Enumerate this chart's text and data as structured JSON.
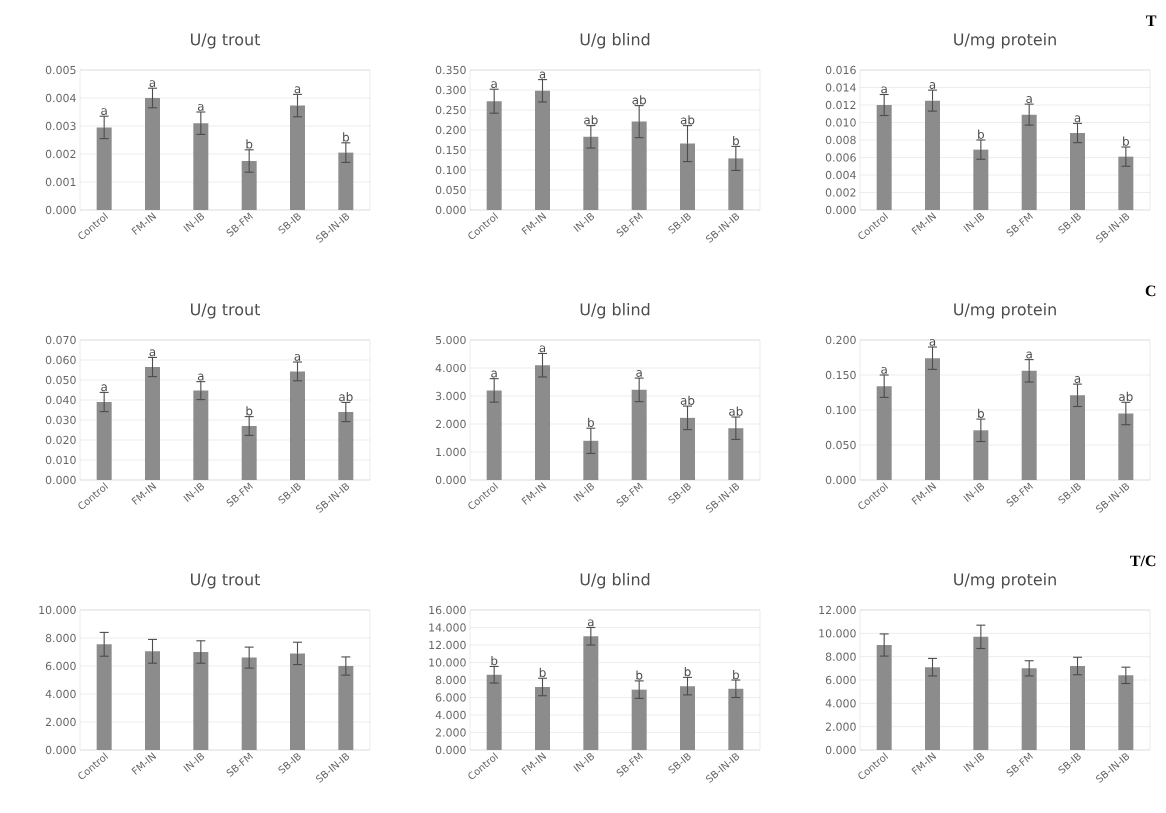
{
  "chart_data": [
    {
      "type": "bar",
      "title": "U/g trout",
      "categories": [
        "Control",
        "FM-IN",
        "IN-IB",
        "SB-FM",
        "SB-IB",
        "SB-IN-IB"
      ],
      "values": [
        0.00295,
        0.004,
        0.0031,
        0.00175,
        0.00373,
        0.00205
      ],
      "errors": [
        0.0004,
        0.00035,
        0.0004,
        0.0004,
        0.0004,
        0.00035
      ],
      "color": "#8c8c8c",
      "ylim": [
        0,
        0.005
      ],
      "yticks": [
        {
          "value": 0,
          "label": "0.000"
        },
        {
          "value": 0.001,
          "label": "0.001"
        },
        {
          "value": 0.002,
          "label": "0.002"
        },
        {
          "value": 0.003,
          "label": "0.003"
        },
        {
          "value": 0.004,
          "label": "0.004"
        },
        {
          "value": 0.005,
          "label": "0.005"
        }
      ],
      "grid": "y",
      "annotations": [
        {
          "text": "a",
          "x": "Control",
          "y": 0.00335
        },
        {
          "text": "a",
          "x": "FM-IN",
          "y": 0.00435
        },
        {
          "text": "a",
          "x": "IN-IB",
          "y": 0.0035
        },
        {
          "text": "b",
          "x": "SB-FM",
          "y": 0.00215
        },
        {
          "text": "a",
          "x": "SB-IB",
          "y": 0.00413
        },
        {
          "text": "b",
          "x": "SB-IN-IB",
          "y": 0.0024
        }
      ]
    },
    {
      "type": "bar",
      "title": "U/g blind",
      "categories": [
        "Control",
        "FM-IN",
        "IN-IB",
        "SB-FM",
        "SB-IB",
        "SB-IN-IB"
      ],
      "values": [
        0.272,
        0.298,
        0.183,
        0.221,
        0.166,
        0.129
      ],
      "errors": [
        0.03,
        0.028,
        0.028,
        0.04,
        0.045,
        0.03
      ],
      "color": "#8c8c8c",
      "ylim": [
        0,
        0.35
      ],
      "yticks": [
        {
          "value": 0,
          "label": "0.000"
        },
        {
          "value": 0.05,
          "label": "0.050"
        },
        {
          "value": 0.1,
          "label": "0.100"
        },
        {
          "value": 0.15,
          "label": "0.150"
        },
        {
          "value": 0.2,
          "label": "0.200"
        },
        {
          "value": 0.25,
          "label": "0.250"
        },
        {
          "value": 0.3,
          "label": "0.300"
        },
        {
          "value": 0.35,
          "label": "0.350"
        }
      ],
      "grid": "y",
      "annotations": [
        {
          "text": "a",
          "x": "Control",
          "y": 0.302
        },
        {
          "text": "a",
          "x": "FM-IN",
          "y": 0.326
        },
        {
          "text": "ab",
          "x": "IN-IB",
          "y": 0.211
        },
        {
          "text": "ab",
          "x": "SB-FM",
          "y": 0.261
        },
        {
          "text": "ab",
          "x": "SB-IB",
          "y": 0.211
        },
        {
          "text": "b",
          "x": "SB-IN-IB",
          "y": 0.159
        }
      ]
    },
    {
      "type": "bar",
      "title": "U/mg protein",
      "categories": [
        "Control",
        "FM-IN",
        "IN-IB",
        "SB-FM",
        "SB-IB",
        "SB-IN-IB"
      ],
      "values": [
        0.012,
        0.0125,
        0.0069,
        0.0109,
        0.0088,
        0.0061
      ],
      "errors": [
        0.0012,
        0.0012,
        0.0011,
        0.0012,
        0.0011,
        0.0011
      ],
      "color": "#8c8c8c",
      "ylim": [
        0,
        0.016
      ],
      "yticks": [
        {
          "value": 0,
          "label": "0.000"
        },
        {
          "value": 0.002,
          "label": "0.002"
        },
        {
          "value": 0.004,
          "label": "0.004"
        },
        {
          "value": 0.006,
          "label": "0.006"
        },
        {
          "value": 0.008,
          "label": "0.008"
        },
        {
          "value": 0.01,
          "label": "0.010"
        },
        {
          "value": 0.012,
          "label": "0.012"
        },
        {
          "value": 0.014,
          "label": "0.014"
        },
        {
          "value": 0.016,
          "label": "0.016"
        }
      ],
      "grid": "y",
      "annotations": [
        {
          "text": "a",
          "x": "Control",
          "y": 0.0132
        },
        {
          "text": "a",
          "x": "FM-IN",
          "y": 0.0137
        },
        {
          "text": "b",
          "x": "IN-IB",
          "y": 0.008
        },
        {
          "text": "a",
          "x": "SB-FM",
          "y": 0.0121
        },
        {
          "text": "a",
          "x": "SB-IB",
          "y": 0.0099
        },
        {
          "text": "b",
          "x": "SB-IN-IB",
          "y": 0.0072
        },
        "T"
      ]
    },
    {
      "type": "bar",
      "title": "U/g trout",
      "categories": [
        "Control",
        "FM-IN",
        "IN-IB",
        "SB-FM",
        "SB-IB",
        "SB-IN-IB"
      ],
      "values": [
        0.039,
        0.0565,
        0.0447,
        0.027,
        0.0543,
        0.034
      ],
      "errors": [
        0.0048,
        0.0048,
        0.0045,
        0.0047,
        0.0047,
        0.0048
      ],
      "color": "#8c8c8c",
      "ylim": [
        0,
        0.07
      ],
      "yticks": [
        {
          "value": 0,
          "label": "0.000"
        },
        {
          "value": 0.01,
          "label": "0.010"
        },
        {
          "value": 0.02,
          "label": "0.020"
        },
        {
          "value": 0.03,
          "label": "0.030"
        },
        {
          "value": 0.04,
          "label": "0.040"
        },
        {
          "value": 0.05,
          "label": "0.050"
        },
        {
          "value": 0.06,
          "label": "0.060"
        },
        {
          "value": 0.07,
          "label": "0.070"
        }
      ],
      "grid": "y",
      "annotations": [
        {
          "text": "a",
          "x": "Control",
          "y": 0.0438
        },
        {
          "text": "a",
          "x": "FM-IN",
          "y": 0.0613
        },
        {
          "text": "a",
          "x": "IN-IB",
          "y": 0.0492
        },
        {
          "text": "b",
          "x": "SB-FM",
          "y": 0.0317
        },
        {
          "text": "a",
          "x": "SB-IB",
          "y": 0.059
        },
        {
          "text": "ab",
          "x": "SB-IN-IB",
          "y": 0.0388
        }
      ]
    },
    {
      "type": "bar",
      "title": "U/g blind",
      "categories": [
        "Control",
        "FM-IN",
        "IN-IB",
        "SB-FM",
        "SB-IB",
        "SB-IN-IB"
      ],
      "values": [
        3.2,
        4.1,
        1.4,
        3.22,
        2.22,
        1.85
      ],
      "errors": [
        0.42,
        0.42,
        0.45,
        0.42,
        0.42,
        0.4
      ],
      "color": "#8c8c8c",
      "ylim": [
        0,
        5
      ],
      "yticks": [
        {
          "value": 0,
          "label": "0.000"
        },
        {
          "value": 1,
          "label": "1.000"
        },
        {
          "value": 2,
          "label": "2.000"
        },
        {
          "value": 3,
          "label": "3.000"
        },
        {
          "value": 4,
          "label": "4.000"
        },
        {
          "value": 5,
          "label": "5.000"
        }
      ],
      "grid": "y",
      "annotations": [
        {
          "text": "a",
          "x": "Control",
          "y": 3.62
        },
        {
          "text": "a",
          "x": "FM-IN",
          "y": 4.52
        },
        {
          "text": "b",
          "x": "IN-IB",
          "y": 1.85
        },
        {
          "text": "a",
          "x": "SB-FM",
          "y": 3.64
        },
        {
          "text": "ab",
          "x": "SB-IB",
          "y": 2.64
        },
        {
          "text": "ab",
          "x": "SB-IN-IB",
          "y": 2.25
        }
      ]
    },
    {
      "type": "bar",
      "title": "U/mg protein",
      "categories": [
        "Control",
        "FM-IN",
        "IN-IB",
        "SB-FM",
        "SB-IB",
        "SB-IN-IB"
      ],
      "values": [
        0.134,
        0.174,
        0.071,
        0.156,
        0.121,
        0.095
      ],
      "errors": [
        0.016,
        0.016,
        0.016,
        0.016,
        0.016,
        0.016
      ],
      "color": "#8c8c8c",
      "ylim": [
        0,
        0.2
      ],
      "yticks": [
        {
          "value": 0,
          "label": "0.000"
        },
        {
          "value": 0.05,
          "label": "0.050"
        },
        {
          "value": 0.1,
          "label": "0.100"
        },
        {
          "value": 0.15,
          "label": "0.150"
        },
        {
          "value": 0.2,
          "label": "0.200"
        }
      ],
      "grid": "y",
      "annotations": [
        {
          "text": "a",
          "x": "Control",
          "y": 0.15
        },
        {
          "text": "a",
          "x": "FM-IN",
          "y": 0.19
        },
        {
          "text": "b",
          "x": "IN-IB",
          "y": 0.087
        },
        {
          "text": "a",
          "x": "SB-FM",
          "y": 0.172
        },
        {
          "text": "a",
          "x": "SB-IB",
          "y": 0.137
        },
        {
          "text": "ab",
          "x": "SB-IN-IB",
          "y": 0.111
        },
        "C"
      ]
    },
    {
      "type": "bar",
      "title": "U/g trout",
      "categories": [
        "Control",
        "FM-IN",
        "IN-IB",
        "SB-FM",
        "SB-IB",
        "SB-IN-IB"
      ],
      "values": [
        7.55,
        7.05,
        7.0,
        6.6,
        6.9,
        6.0
      ],
      "errors": [
        0.85,
        0.85,
        0.8,
        0.75,
        0.8,
        0.65
      ],
      "color": "#8c8c8c",
      "ylim": [
        0,
        10
      ],
      "yticks": [
        {
          "value": 0,
          "label": "0.000"
        },
        {
          "value": 2,
          "label": "2.000"
        },
        {
          "value": 4,
          "label": "4.000"
        },
        {
          "value": 6,
          "label": "6.000"
        },
        {
          "value": 8,
          "label": "8.000"
        },
        {
          "value": 10,
          "label": "10.000"
        }
      ],
      "grid": "y"
    },
    {
      "type": "bar",
      "title": "U/g blind",
      "categories": [
        "Control",
        "FM-IN",
        "IN-IB",
        "SB-FM",
        "SB-IB",
        "SB-IN-IB"
      ],
      "values": [
        8.6,
        7.2,
        13.0,
        6.9,
        7.3,
        7.0
      ],
      "errors": [
        0.95,
        1.0,
        1.0,
        1.0,
        1.0,
        1.0
      ],
      "color": "#8c8c8c",
      "ylim": [
        0,
        16
      ],
      "yticks": [
        {
          "value": 0,
          "label": "0.000"
        },
        {
          "value": 2,
          "label": "2.000"
        },
        {
          "value": 4,
          "label": "4.000"
        },
        {
          "value": 6,
          "label": "6.000"
        },
        {
          "value": 8,
          "label": "8.000"
        },
        {
          "value": 10,
          "label": "10.000"
        },
        {
          "value": 12,
          "label": "12.000"
        },
        {
          "value": 14,
          "label": "14.000"
        },
        {
          "value": 16,
          "label": "16.000"
        }
      ],
      "grid": "y",
      "annotations": [
        {
          "text": "b",
          "x": "Control",
          "y": 9.55
        },
        {
          "text": "b",
          "x": "FM-IN",
          "y": 8.2
        },
        {
          "text": "a",
          "x": "IN-IB",
          "y": 14.0
        },
        {
          "text": "b",
          "x": "SB-FM",
          "y": 7.9
        },
        {
          "text": "b",
          "x": "SB-IB",
          "y": 8.3
        },
        {
          "text": "b",
          "x": "SB-IN-IB",
          "y": 7.95
        }
      ]
    },
    {
      "type": "bar",
      "title": "U/mg protein",
      "categories": [
        "Control",
        "FM-IN",
        "IN-IB",
        "SB-FM",
        "SB-IB",
        "SB-IN-IB"
      ],
      "values": [
        9.0,
        7.1,
        9.7,
        7.0,
        7.2,
        6.4
      ],
      "errors": [
        0.95,
        0.75,
        1.0,
        0.65,
        0.75,
        0.7
      ],
      "color": "#8c8c8c",
      "ylim": [
        0,
        12
      ],
      "yticks": [
        {
          "value": 0,
          "label": "0.000"
        },
        {
          "value": 2,
          "label": "2.000"
        },
        {
          "value": 4,
          "label": "4.000"
        },
        {
          "value": 6,
          "label": "6.000"
        },
        {
          "value": 8,
          "label": "8.000"
        },
        {
          "value": 10,
          "label": "10.000"
        },
        {
          "value": 12,
          "label": "12.000"
        }
      ],
      "grid": "y",
      "annotations": [
        "T/C"
      ]
    }
  ]
}
